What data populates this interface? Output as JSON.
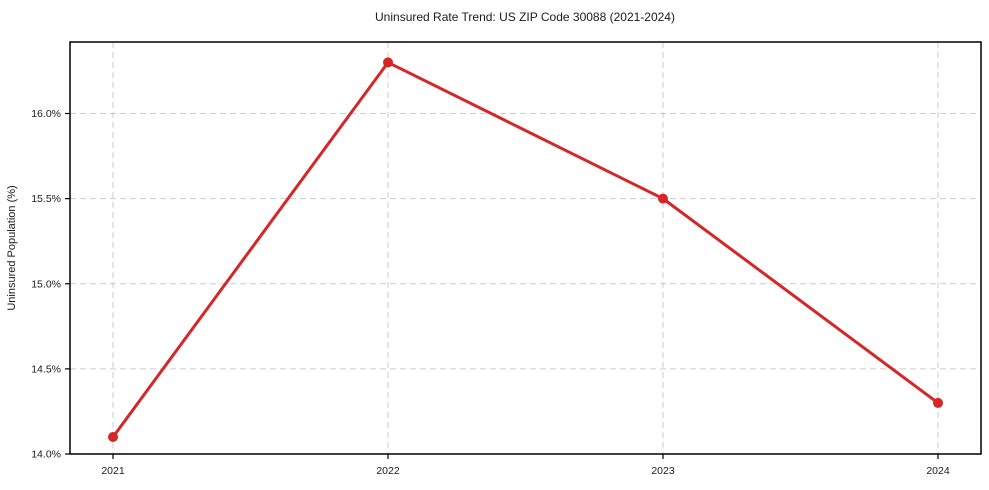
{
  "chart_data": {
    "type": "line",
    "title": "Uninsured Rate Trend: US ZIP Code 30088 (2021-2024)",
    "xlabel": "",
    "ylabel": "Uninsured Population (%)",
    "x": [
      2021,
      2022,
      2023,
      2024
    ],
    "x_tick_labels": [
      "2021",
      "2022",
      "2023",
      "2024"
    ],
    "series": [
      {
        "name": "Uninsured Population (%)",
        "values": [
          14.1,
          16.3,
          15.5,
          14.3
        ],
        "color": "#d62728",
        "marker": "circle"
      }
    ],
    "y_ticks": [
      14.0,
      14.5,
      15.0,
      15.5,
      16.0
    ],
    "y_tick_labels": [
      "14.0%",
      "14.5%",
      "15.0%",
      "15.5%",
      "16.0%"
    ],
    "ylim": [
      14.0,
      16.42
    ],
    "grid": "on",
    "grid_style": "dashed",
    "grid_color": "#cccccc",
    "axis_color": "#000000",
    "text_color": "#1a1a1a",
    "background_color": "#ffffff",
    "legend": "none"
  }
}
